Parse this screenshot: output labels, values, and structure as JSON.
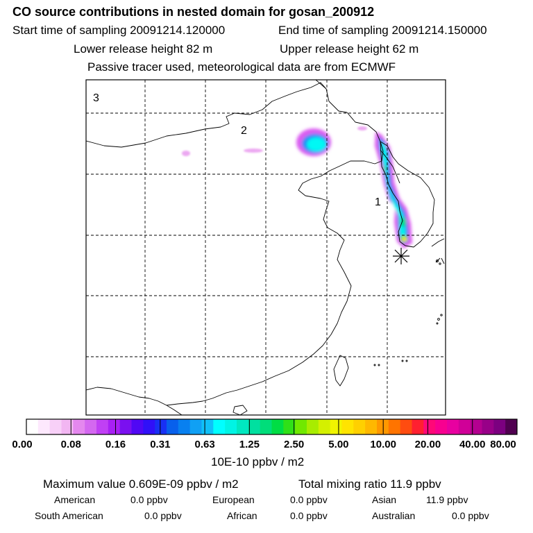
{
  "header": {
    "title": "CO  source contributions in nested domain for gosan_200912",
    "start_label": "Start time of sampling 20091214.120000",
    "end_label": "End time of sampling 20091214.150000",
    "lower_label": "Lower release height   82 m",
    "upper_label": "Upper release height   62 m",
    "tracer_label": "Passive tracer used, meteorological data are from ECMWF"
  },
  "chart_data": {
    "type": "heatmap",
    "domain_labels": [
      "3",
      "2",
      "1"
    ],
    "colorbar": {
      "tick_labels": [
        "0.00",
        "0.08",
        "0.16",
        "0.31",
        "0.63",
        "1.25",
        "2.50",
        "5.00",
        "10.00",
        "20.00",
        "40.00",
        "80.00"
      ],
      "unit_label": "10E-10 ppbv / m2",
      "colors": [
        "#ffffff",
        "#fde8fd",
        "#f8d0f8",
        "#f2b6f2",
        "#e488ee",
        "#d468f0",
        "#c040f4",
        "#a820f4",
        "#7a10f0",
        "#5008f4",
        "#3010f8",
        "#1830f4",
        "#0860ec",
        "#0880f0",
        "#10a0f4",
        "#10c0f8",
        "#00ffff",
        "#00f4e4",
        "#00e8c0",
        "#00e0a0",
        "#00dd7a",
        "#00dd44",
        "#30e018",
        "#70e800",
        "#a8ec00",
        "#d4f000",
        "#f0f400",
        "#ffe400",
        "#ffd000",
        "#ffb800",
        "#ff9800",
        "#ff7400",
        "#ff4c10",
        "#ff2030",
        "#ff0878",
        "#f80090",
        "#e800a0",
        "#d00098",
        "#b40090",
        "#980088",
        "#7c0080",
        "#500050"
      ]
    },
    "max_value_label": "Maximum value  0.609E-09 ppbv / m2",
    "total_label": "Total mixing ratio        11.9 ppbv",
    "regions": [
      {
        "name": "American",
        "value": "0.0 ppbv"
      },
      {
        "name": "European",
        "value": "0.0 ppbv"
      },
      {
        "name": "Asian",
        "value": "11.9 ppbv"
      },
      {
        "name": "South American",
        "value": "0.0 ppbv"
      },
      {
        "name": "African",
        "value": "0.0 ppbv"
      },
      {
        "name": "Australian",
        "value": "0.0 ppbv"
      }
    ]
  }
}
